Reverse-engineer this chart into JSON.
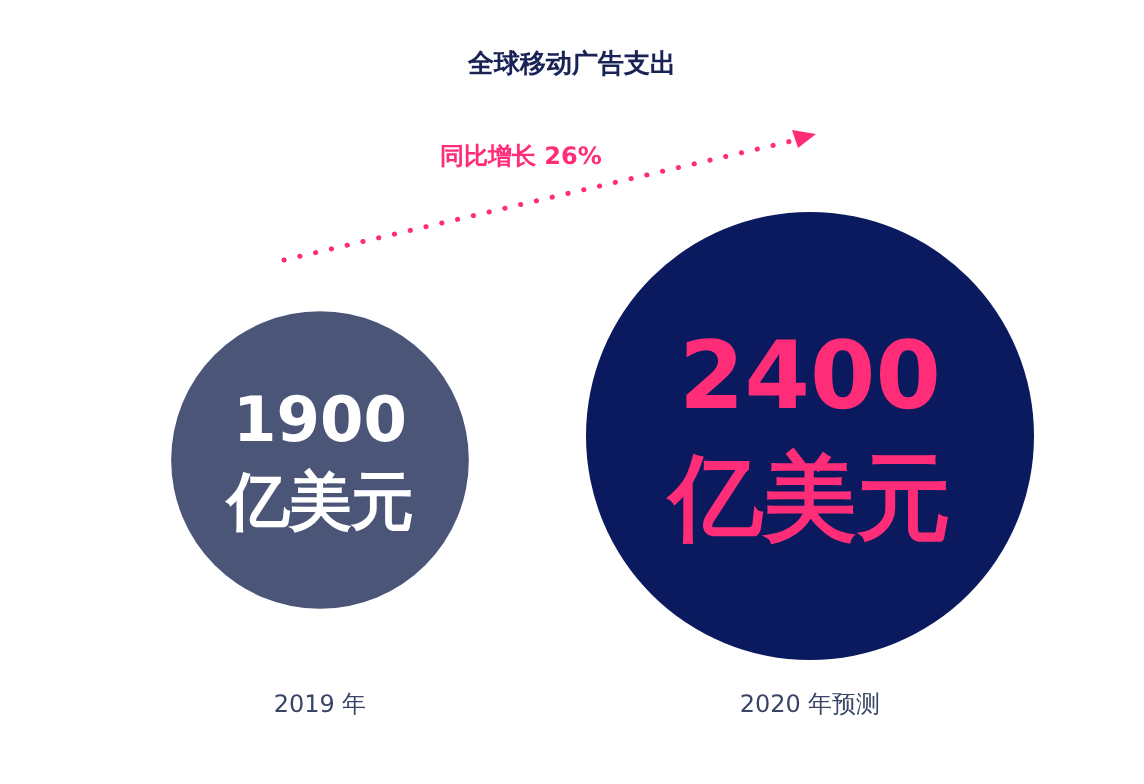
{
  "chart_data": {
    "type": "other",
    "title": "全球移动广告支出",
    "categories": [
      "2019 年",
      "2020 年预测"
    ],
    "values": [
      1900,
      2400
    ],
    "value_labels": [
      "1900 亿美元",
      "2400 亿美元"
    ],
    "colors": [
      "#4a5578",
      "#0b1a5e"
    ],
    "annotations": [
      "同比增长 26%"
    ]
  }
}
